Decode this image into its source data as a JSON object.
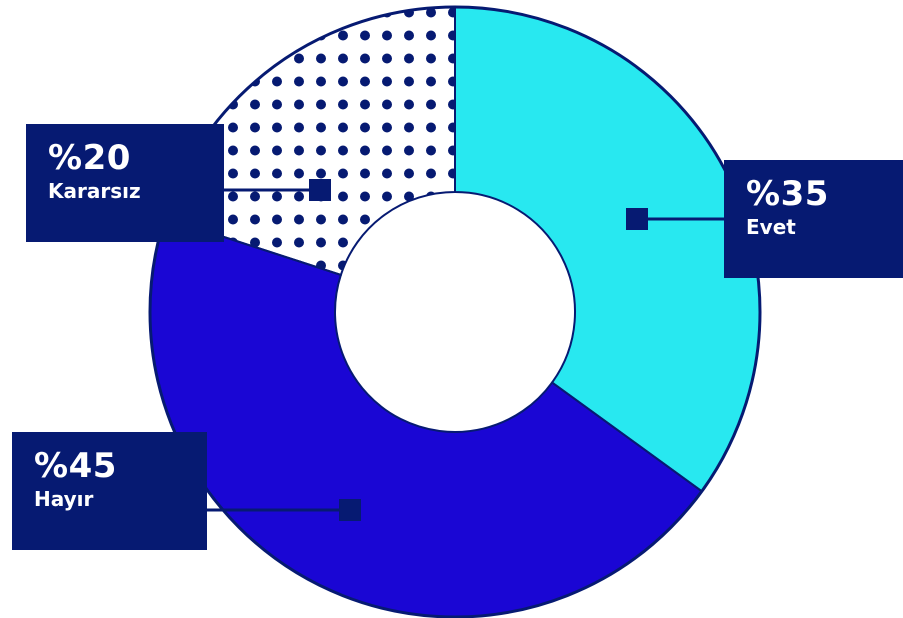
{
  "chart_data": {
    "type": "pie",
    "categories": [
      "Evet",
      "Hayır",
      "Kararsız"
    ],
    "values": [
      35,
      45,
      20
    ],
    "labels": [
      {
        "pct": "%35",
        "name": "Evet"
      },
      {
        "pct": "%45",
        "name": "Hayır"
      },
      {
        "pct": "%20",
        "name": "Kararsız"
      }
    ],
    "donut": true,
    "colors": {
      "evet": "#28e8f0",
      "hayir": "#1a06d4",
      "kararsiz_dots": "#061a72",
      "kararsiz_bg": "#ffffff",
      "outline": "#061a72",
      "label_bg": "#061a72",
      "label_text": "#ffffff"
    }
  }
}
